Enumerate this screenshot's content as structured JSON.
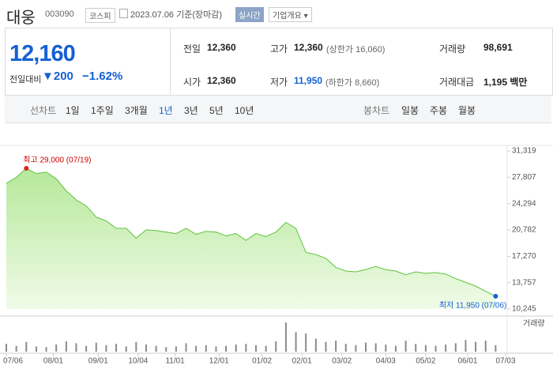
{
  "header": {
    "name": "대웅",
    "code": "003090",
    "market": "코스피",
    "date_text": "2023.07.06 기준(장마감)",
    "realtime": "실시간",
    "overview": "기업개요"
  },
  "quote": {
    "price": "12,160",
    "change_label": "전일대비",
    "change": "200",
    "change_rate": "−1.62%"
  },
  "stats": [
    {
      "label": "전일",
      "value": "12,360"
    },
    {
      "label": "고가",
      "value": "12,360",
      "note": "(상한가 16,060)"
    },
    {
      "label": "거래량",
      "value": "98,691"
    },
    {
      "label": "시가",
      "value": "12,360"
    },
    {
      "label": "저가",
      "value": "11,950",
      "note": "(하한가 8,660)"
    },
    {
      "label": "거래대금",
      "value": "1,195 백만"
    }
  ],
  "tabs": {
    "line_label": "선차트",
    "line": [
      "1일",
      "1주일",
      "3개월",
      "1년",
      "3년",
      "5년",
      "10년"
    ],
    "selected": "1년",
    "candle_label": "봉차트",
    "candle": [
      "일봉",
      "주봉",
      "월봉"
    ]
  },
  "chart_data": {
    "type": "area",
    "color": "#5fc23c",
    "values": [
      27000,
      27800,
      29000,
      28300,
      28500,
      27600,
      26000,
      24800,
      24000,
      22500,
      22000,
      21000,
      21000,
      19700,
      20800,
      20700,
      20500,
      20300,
      21000,
      20200,
      20600,
      20500,
      20000,
      20300,
      19400,
      20300,
      19900,
      20500,
      21800,
      21000,
      17800,
      17500,
      17000,
      15800,
      15300,
      15200,
      15500,
      15900,
      15500,
      15300,
      14800,
      15200,
      15000,
      15100,
      14900,
      14300,
      13800,
      13300,
      12600,
      11950
    ],
    "ylim": [
      10245,
      31319
    ],
    "yticks": [
      {
        "value": 31319,
        "label": "31,319"
      },
      {
        "value": 27807,
        "label": "27,807"
      },
      {
        "value": 24294,
        "label": "24,294"
      },
      {
        "value": 20782,
        "label": "20,782"
      },
      {
        "value": 17270,
        "label": "17,270"
      },
      {
        "value": 13757,
        "label": "13,757"
      },
      {
        "value": 10245,
        "label": "10,245"
      }
    ],
    "xlim": [
      0,
      50
    ],
    "xticks": [
      {
        "value": 0,
        "label": "07/06"
      },
      {
        "value": 4.7,
        "label": "08/01"
      },
      {
        "value": 9.2,
        "label": "09/01"
      },
      {
        "value": 13.2,
        "label": "10/04"
      },
      {
        "value": 16.9,
        "label": "11/01"
      },
      {
        "value": 21.3,
        "label": "12/01"
      },
      {
        "value": 25.6,
        "label": "01/02"
      },
      {
        "value": 29.6,
        "label": "02/01"
      },
      {
        "value": 33.6,
        "label": "03/02"
      },
      {
        "value": 38,
        "label": "04/03"
      },
      {
        "value": 42,
        "label": "05/02"
      },
      {
        "value": 46.2,
        "label": "06/01"
      },
      {
        "value": 50,
        "label": "07/03"
      }
    ],
    "high_text": "최고 29,000 (07/19)",
    "low_text": "최저 11,950 (07/06)",
    "volume_label": "거래량",
    "volume_color": "#8a8a8a",
    "volume_lim": [
      0,
      500000
    ],
    "volume": [
      120000,
      90000,
      150000,
      80000,
      70000,
      110000,
      160000,
      130000,
      90000,
      140000,
      100000,
      120000,
      80000,
      150000,
      110000,
      90000,
      70000,
      80000,
      130000,
      90000,
      100000,
      80000,
      90000,
      110000,
      120000,
      100000,
      90000,
      160000,
      450000,
      300000,
      280000,
      200000,
      150000,
      170000,
      120000,
      100000,
      140000,
      130000,
      110000,
      90000,
      170000,
      120000,
      100000,
      90000,
      110000,
      130000,
      180000,
      150000,
      170000,
      100000
    ]
  }
}
